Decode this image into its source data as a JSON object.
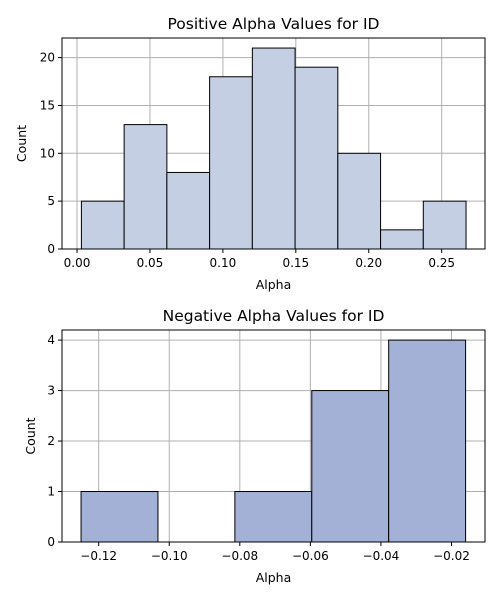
{
  "chart_data": [
    {
      "type": "bar",
      "title": "Positive Alpha Values for ID",
      "xlabel": "Alpha",
      "ylabel": "Count",
      "xlim": [
        -0.0103,
        0.2797
      ],
      "ylim": [
        0,
        22.05
      ],
      "xticks": [
        0.0,
        0.05,
        0.1,
        0.15,
        0.2,
        0.25
      ],
      "xtick_labels": [
        "0.00",
        "0.05",
        "0.10",
        "0.15",
        "0.20",
        "0.25"
      ],
      "yticks": [
        0,
        5,
        10,
        15,
        20
      ],
      "ytick_labels": [
        "0",
        "5",
        "10",
        "15",
        "20"
      ],
      "grid": true,
      "bar_color": "#c5cfe3",
      "edge_color": "#000000",
      "bins": [
        {
          "x0": 0.003,
          "x1": 0.0323,
          "count": 5
        },
        {
          "x0": 0.0323,
          "x1": 0.0616,
          "count": 13
        },
        {
          "x0": 0.0616,
          "x1": 0.0909,
          "count": 8
        },
        {
          "x0": 0.0909,
          "x1": 0.1202,
          "count": 18
        },
        {
          "x0": 0.1202,
          "x1": 0.1495,
          "count": 21
        },
        {
          "x0": 0.1495,
          "x1": 0.1788,
          "count": 19
        },
        {
          "x0": 0.1788,
          "x1": 0.2081,
          "count": 10
        },
        {
          "x0": 0.2081,
          "x1": 0.2374,
          "count": 2
        },
        {
          "x0": 0.2374,
          "x1": 0.2667,
          "count": 5
        }
      ]
    },
    {
      "type": "bar",
      "title": "Negative Alpha Values for ID",
      "xlabel": "Alpha",
      "ylabel": "Count",
      "xlim": [
        -0.1304,
        -0.0105
      ],
      "ylim": [
        0,
        4.2
      ],
      "xticks": [
        -0.12,
        -0.1,
        -0.08,
        -0.06,
        -0.04,
        -0.02
      ],
      "xtick_labels": [
        "−0.12",
        "−0.10",
        "−0.08",
        "−0.06",
        "−0.04",
        "−0.02"
      ],
      "yticks": [
        0,
        1,
        2,
        3,
        4
      ],
      "ytick_labels": [
        "0",
        "1",
        "2",
        "3",
        "4"
      ],
      "grid": true,
      "bar_color": "#a4b1d6",
      "edge_color": "#000000",
      "bins": [
        {
          "x0": -0.125,
          "x1": -0.1032,
          "count": 1
        },
        {
          "x0": -0.1032,
          "x1": -0.0814,
          "count": 0
        },
        {
          "x0": -0.0814,
          "x1": -0.0596,
          "count": 1
        },
        {
          "x0": -0.0596,
          "x1": -0.0378,
          "count": 3
        },
        {
          "x0": -0.0378,
          "x1": -0.016,
          "count": 4
        }
      ]
    }
  ]
}
